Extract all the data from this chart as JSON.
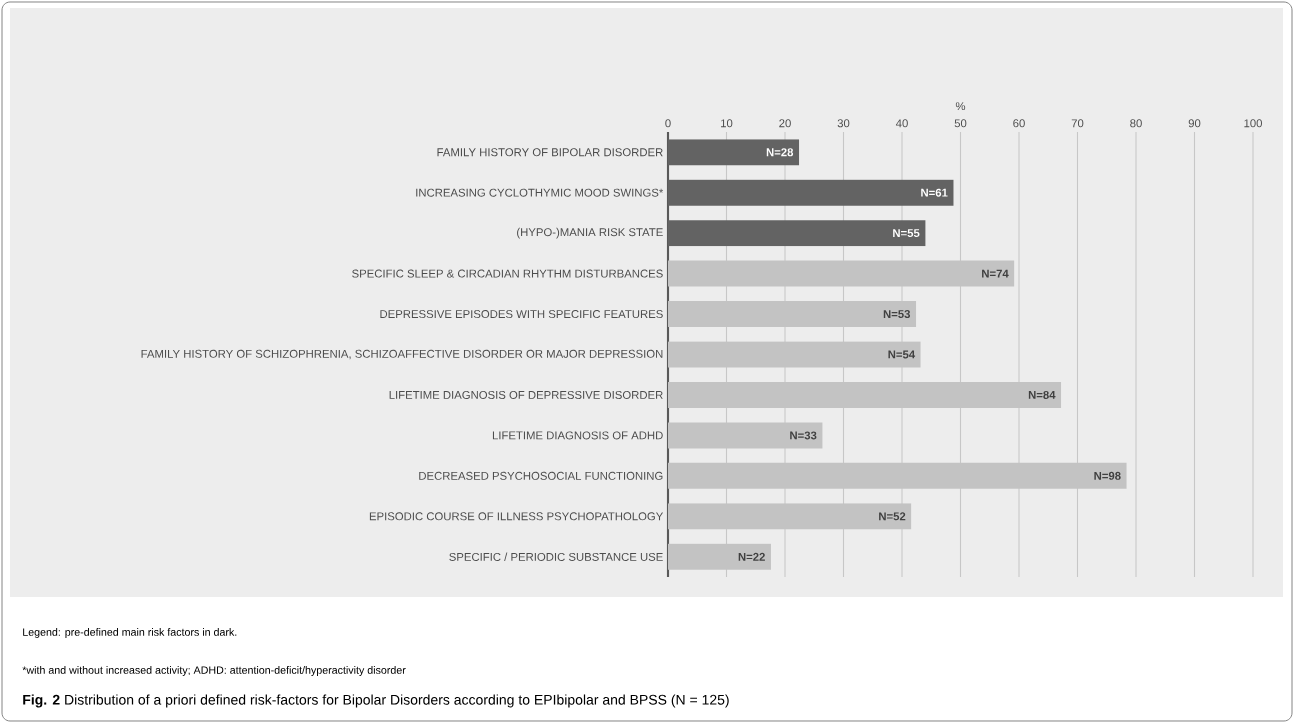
{
  "chart_data": {
    "type": "bar",
    "orientation": "horizontal",
    "xlabel": "%",
    "categories": [
      "FAMILY HISTORY OF BIPOLAR DISORDER",
      "INCREASING CYCLOTHYMIC MOOD SWINGS*",
      "(HYPO-)MANIA RISK STATE",
      "SPECIFIC SLEEP & CIRCADIAN RHYTHM DISTURBANCES",
      "DEPRESSIVE EPISODES WITH SPECIFIC FEATURES",
      "FAMILY HISTORY OF SCHIZOPHRENIA, SCHIZOAFFECTIVE DISORDER OR MAJOR DEPRESSION",
      "LIFETIME DIAGNOSIS OF DEPRESSIVE DISORDER",
      "LIFETIME DIAGNOSIS OF ADHD",
      "DECREASED PSYCHOSOCIAL FUNCTIONING",
      "EPISODIC COURSE OF ILLNESS PSYCHOPATHOLOGY",
      "SPECIFIC / PERIODIC SUBSTANCE USE"
    ],
    "values": [
      22.4,
      48.8,
      44,
      59.2,
      42.4,
      43.2,
      67.2,
      26.4,
      78.4,
      41.6,
      17.6
    ],
    "colors": [
      "#636363",
      "#636363",
      "#636363",
      "#c3c3c3",
      "#c3c3c3",
      "#c3c3c3",
      "#c3c3c3",
      "#c3c3c3",
      "#c3c3c3",
      "#c3c3c3",
      "#c3c3c3"
    ],
    "xlim": [
      0,
      100
    ],
    "xticks": [
      0,
      10,
      20,
      30,
      40,
      50,
      60,
      70,
      80,
      90,
      100
    ],
    "grid": "x",
    "annotations": [
      {
        "text": "N=28",
        "x": 22.4,
        "y": "FAMILY HISTORY OF BIPOLAR DISORDER"
      },
      {
        "text": "N=61",
        "x": 48.8,
        "y": "INCREASING CYCLOTHYMIC MOOD SWINGS*"
      },
      {
        "text": "N=55",
        "x": 44,
        "y": "(HYPO-)MANIA RISK STATE"
      },
      {
        "text": "N=74",
        "x": 59.2,
        "y": "SPECIFIC SLEEP & CIRCADIAN RHYTHM DISTURBANCES"
      },
      {
        "text": "N=53",
        "x": 42.4,
        "y": "DEPRESSIVE EPISODES WITH SPECIFIC FEATURES"
      },
      {
        "text": "N=54",
        "x": 43.2,
        "y": "FAMILY HISTORY OF SCHIZOPHRENIA, SCHIZOAFFECTIVE DISORDER OR MAJOR DEPRESSION"
      },
      {
        "text": "N=84",
        "x": 67.2,
        "y": "LIFETIME DIAGNOSIS OF DEPRESSIVE DISORDER"
      },
      {
        "text": "N=33",
        "x": 26.4,
        "y": "LIFETIME DIAGNOSIS OF ADHD"
      },
      {
        "text": "N=98",
        "x": 78.4,
        "y": "DECREASED PSYCHOSOCIAL FUNCTIONING"
      },
      {
        "text": "N=52",
        "x": 41.6,
        "y": "EPISODIC COURSE OF ILLNESS PSYCHOPATHOLOGY"
      },
      {
        "text": "N=22",
        "x": 17.6,
        "y": "SPECIFIC / PERIODIC SUBSTANCE USE"
      },
      "Legend: pre-defined main risk factors in dark.",
      "*with and without increased activity; ADHD: attention-deficit/hyperactivity disorder",
      "**Fig. 2** Distribution of a priori defined risk-factors for Bipolar Disorders according to EPIbipolar and BPSS (N = 125)"
    ]
  }
}
